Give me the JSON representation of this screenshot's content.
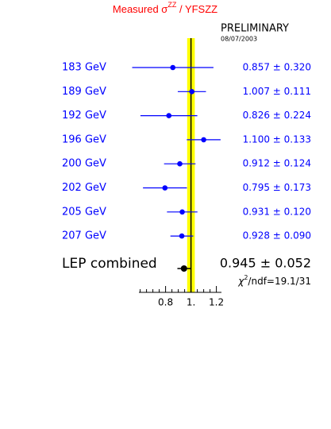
{
  "chart_data": {
    "type": "forest",
    "title": [
      "Measured σ",
      "ZZ",
      " / YFSZZ"
    ],
    "title_color": "#ff0000",
    "annotations": [
      "PRELIMINARY",
      "08/07/2003"
    ],
    "categories": [
      "183 GeV",
      "189 GeV",
      "192 GeV",
      "196 GeV",
      "200 GeV",
      "202 GeV",
      "205 GeV",
      "207 GeV"
    ],
    "values": [
      0.857,
      1.007,
      0.826,
      1.1,
      0.912,
      0.795,
      0.931,
      0.928
    ],
    "errors": [
      0.32,
      0.111,
      0.224,
      0.133,
      0.124,
      0.173,
      0.12,
      0.09
    ],
    "value_labels": [
      "0.857 ± 0.320",
      "1.007 ± 0.111",
      "0.826 ± 0.224",
      "1.100 ± 0.133",
      "0.912 ± 0.124",
      "0.795 ± 0.173",
      "0.931 ± 0.120",
      "0.928 ± 0.090"
    ],
    "color": "#0000ff",
    "combined": {
      "label": "LEP combined",
      "value": 0.945,
      "error": 0.052,
      "value_label": "0.945 ± 0.052",
      "color": "#000000"
    },
    "chi2": [
      "χ",
      "2",
      "/ndf=19.1/31"
    ],
    "reference": 1,
    "band": [
      0.97,
      1.03
    ],
    "band_color": "#ffff00",
    "xlim": [
      0.59,
      1.24
    ],
    "xticks": [
      0.8,
      {
        "value": 1,
        "label": "1."
      },
      1.2
    ],
    "xminorticks": [
      0.6,
      0.65,
      0.7,
      0.75,
      0.85,
      0.9,
      0.95,
      1.05,
      1.1,
      1.15
    ]
  }
}
